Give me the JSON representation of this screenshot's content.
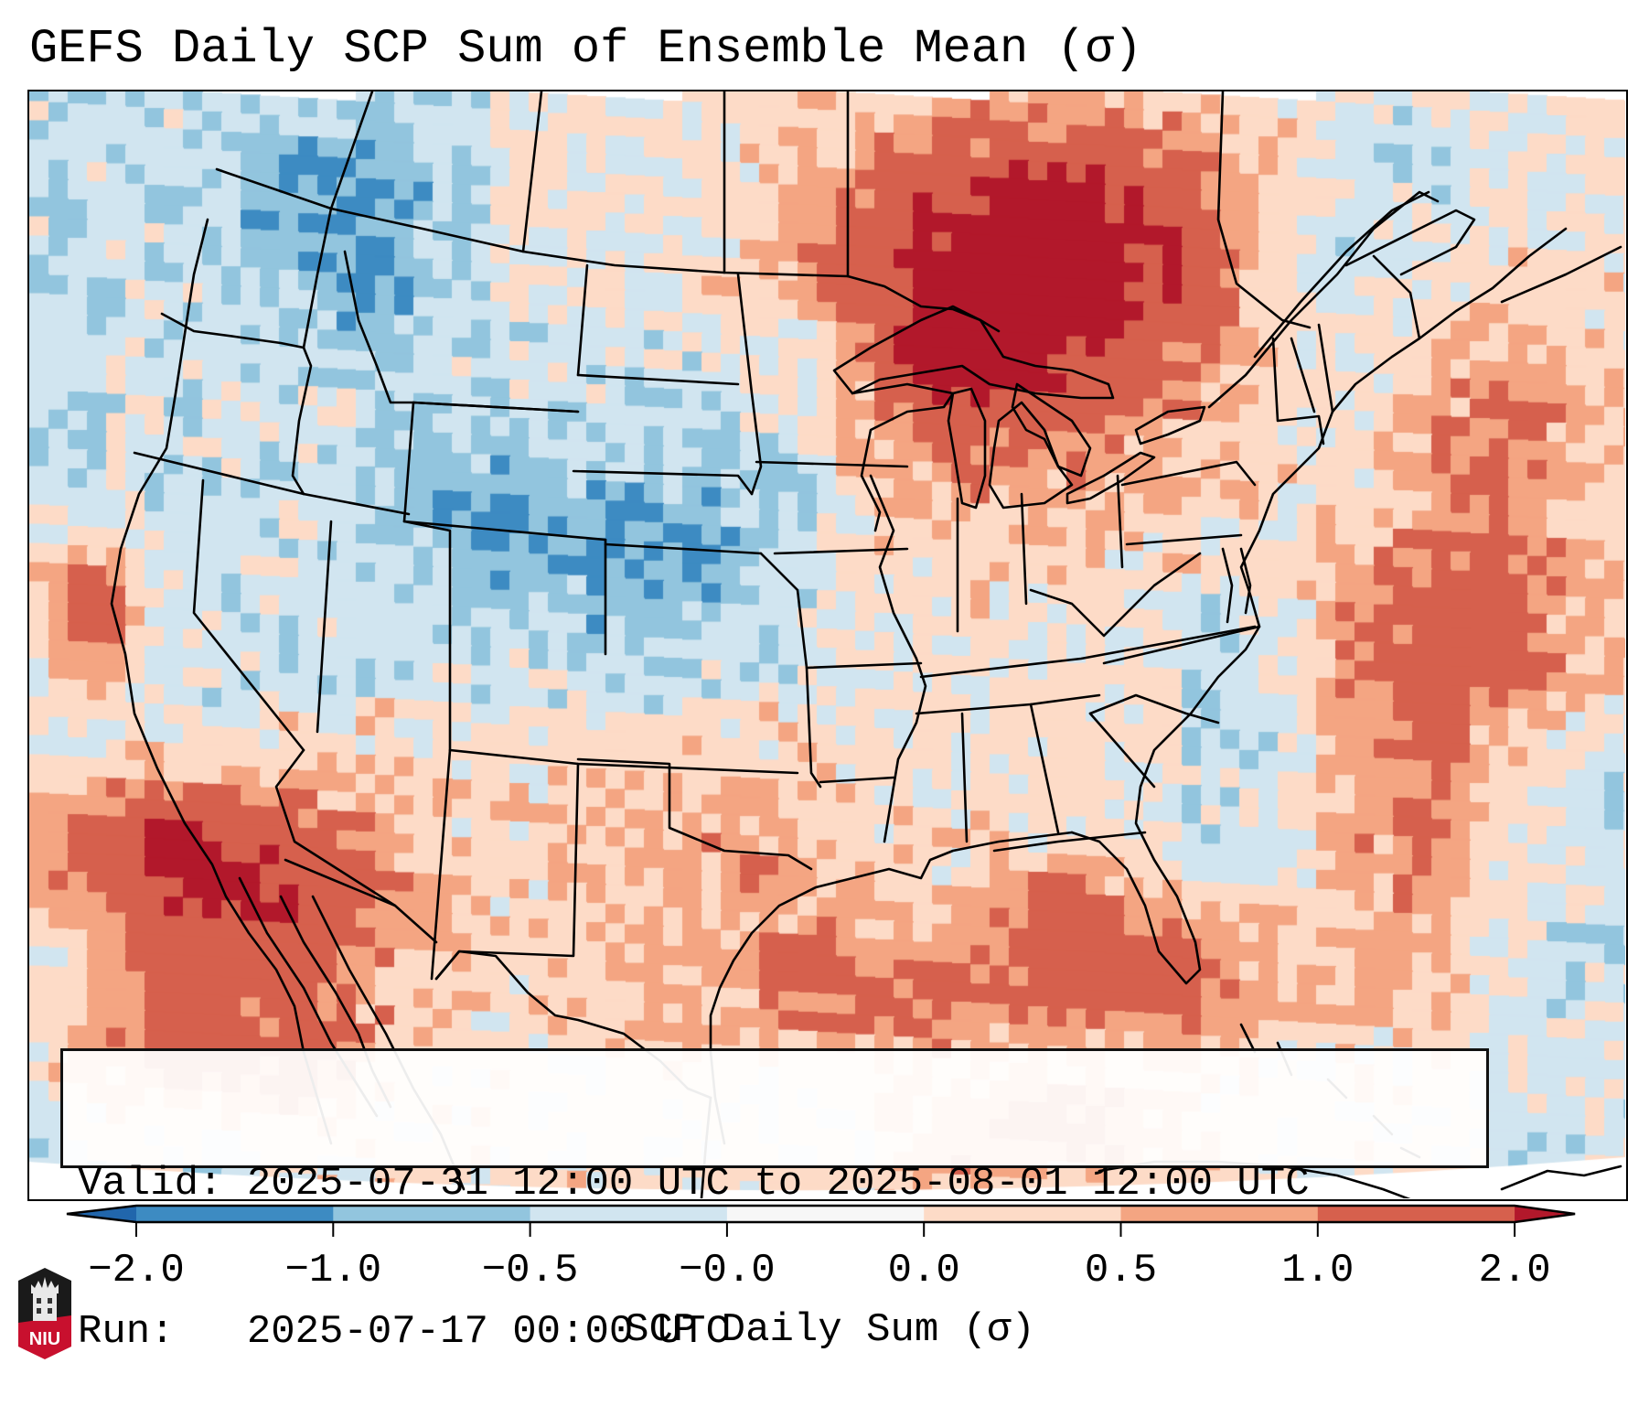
{
  "title": "GEFS Daily SCP Sum of Ensemble Mean (σ)",
  "map": {
    "projection_region": "Contiguous United States, southern Canada, northern Mexico",
    "field": "SCP Daily Sum standardized anomaly of ensemble mean",
    "features": [
      "coastlines",
      "country borders",
      "state borders"
    ]
  },
  "info_box": {
    "valid_line": "Valid: 2025-07-31 12:00 UTC to 2025-08-01 12:00 UTC",
    "run_line": "Run:   2025-07-17 00:00 UTC"
  },
  "colorbar": {
    "label": "SCP Daily Sum (σ)",
    "ticks": [
      "-2.0",
      "-1.0",
      "-0.5",
      "-0.0",
      "0.0",
      "0.5",
      "1.0",
      "2.0"
    ],
    "levels": [
      -2.0,
      -1.0,
      -0.5,
      -0.0,
      0.0,
      0.5,
      1.0,
      2.0
    ],
    "extend": "both",
    "colors": [
      "#3d8bc2",
      "#92c5de",
      "#d1e5f0",
      "#f7f7f7",
      "#fddbc7",
      "#f4a582",
      "#d6604d"
    ],
    "under_color": "#2166ac",
    "over_color": "#b2182b"
  },
  "chart_data": {
    "type": "heatmap",
    "title": "GEFS Daily SCP Sum of Ensemble Mean (σ)",
    "colorbar_label": "SCP Daily Sum (σ)",
    "levels": [
      -2.0,
      -1.0,
      -0.5,
      -0.0,
      0.0,
      0.5,
      1.0,
      2.0
    ],
    "regional_anomalies": [
      {
        "region": "Upper Great Lakes / Wisconsin / Michigan / Ontario",
        "category": "1.0 to 2.0 and >2.0"
      },
      {
        "region": "Baja California / Gulf of California / NW Mexico Pacific",
        "category": "1.0 to 2.0 and >2.0"
      },
      {
        "region": "Northern California coast",
        "category": "1.0 to >2.0"
      },
      {
        "region": "Gulf of Mexico",
        "category": "0.5 to 1.0 and 1.0 to 2.0"
      },
      {
        "region": "Western Atlantic off Mid-Atlantic coast",
        "category": "0.5 to 1.0 and 1.0 to 2.0"
      },
      {
        "region": "Central Plains (Colorado, Kansas, Nebraska)",
        "category": "-1.0 to -0.5"
      },
      {
        "region": "Pacific Northwest interior / Idaho / Montana",
        "category": "-1.0 to -0.5"
      },
      {
        "region": "Intermountain West and Southern Plains",
        "category": "-0.5 to -0.0"
      },
      {
        "region": "Southeast US",
        "category": "0.0 to 0.5"
      }
    ]
  },
  "logo": {
    "text": "NIU",
    "colors": {
      "top": "#1a1a1a",
      "bottom": "#c8102e"
    }
  }
}
